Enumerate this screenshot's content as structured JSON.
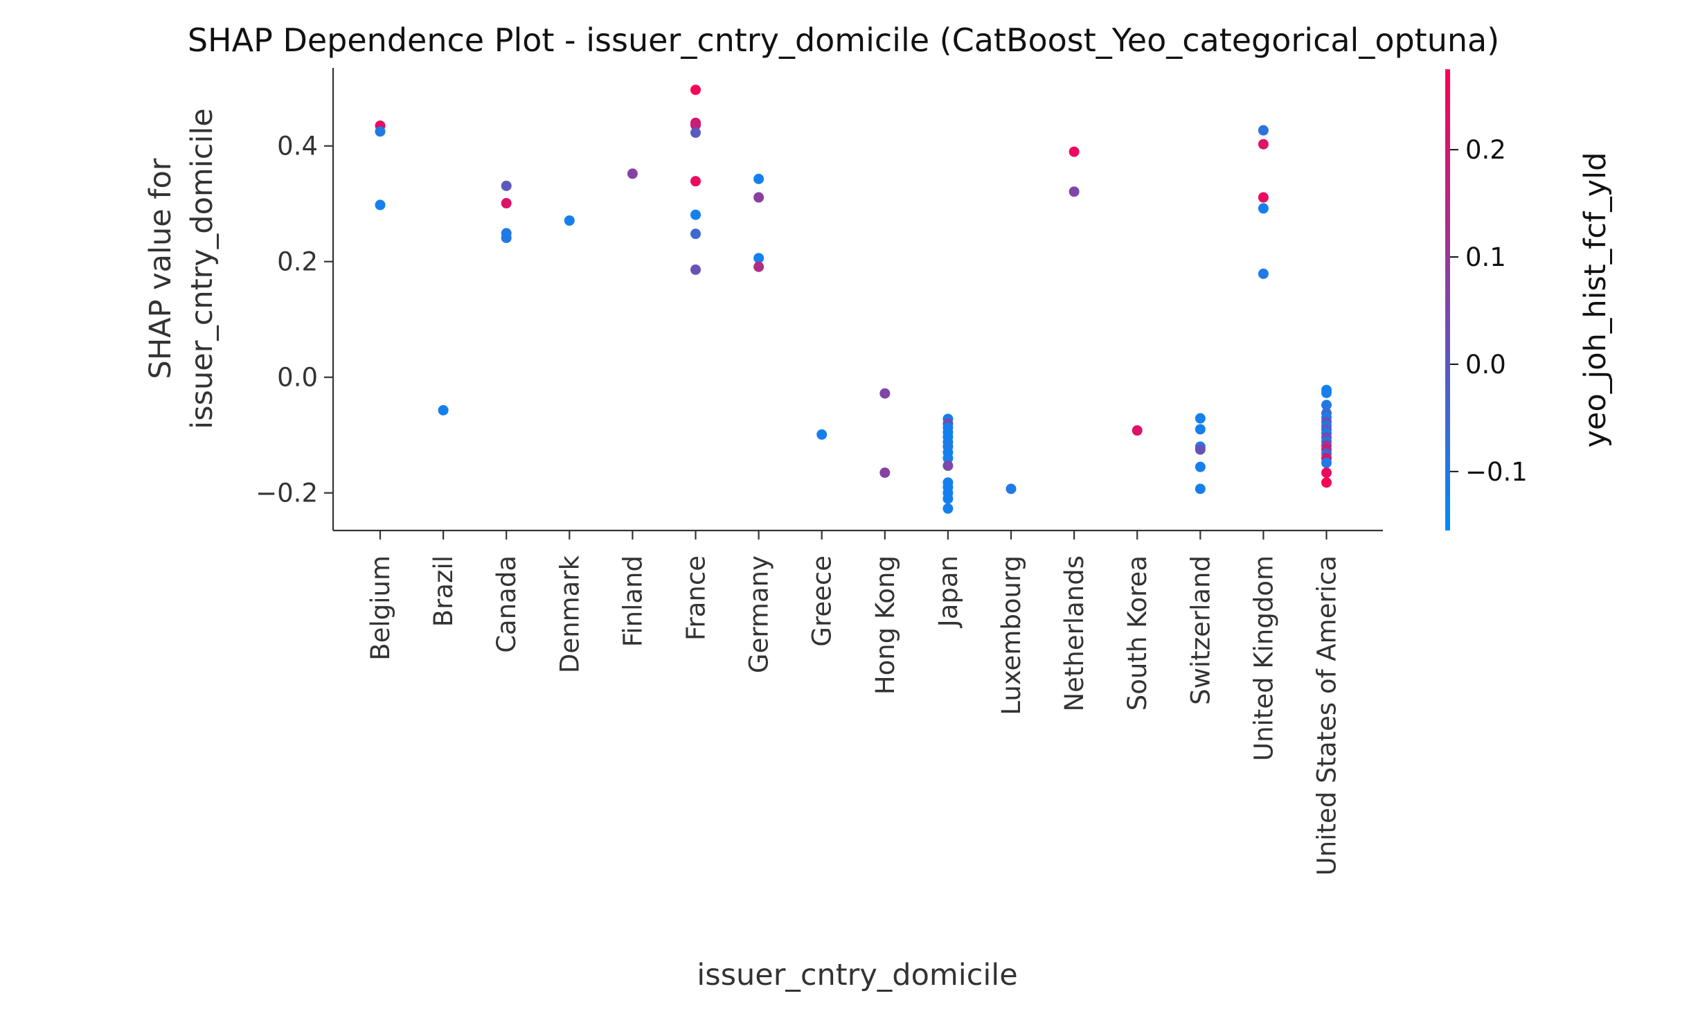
{
  "chart_data": {
    "type": "scatter",
    "title": "SHAP Dependence Plot - issuer_cntry_domicile (CatBoost_Yeo_categorical_optuna)",
    "xlabel": "issuer_cntry_domicile",
    "ylabel_lines": [
      "SHAP value for",
      "issuer_cntry_domicile"
    ],
    "categories": [
      "Belgium",
      "Brazil",
      "Canada",
      "Denmark",
      "Finland",
      "France",
      "Germany",
      "Greece",
      "Hong Kong",
      "Japan",
      "Luxembourg",
      "Netherlands",
      "South Korea",
      "Switzerland",
      "United Kingdom",
      "United States of America"
    ],
    "ylim": [
      -0.265,
      0.535
    ],
    "yticks": [
      -0.2,
      0.0,
      0.2,
      0.4
    ],
    "ytick_labels": [
      "−0.2",
      "0.0",
      "0.2",
      "0.4"
    ],
    "colorbar": {
      "label": "yeo_joh_hist_fcf_yld",
      "range": [
        -0.155,
        0.275
      ],
      "ticks": [
        -0.1,
        0.0,
        0.1,
        0.2
      ],
      "tick_labels": [
        "−0.1",
        "0.0",
        "0.1",
        "0.2"
      ],
      "color_low": "#008bfb",
      "color_high": "#ff0052"
    },
    "series": [
      {
        "points": [
          {
            "x": "Belgium",
            "y": 0.435,
            "c": 0.24
          },
          {
            "x": "Belgium",
            "y": 0.425,
            "c": -0.1
          },
          {
            "x": "Belgium",
            "y": 0.298,
            "c": -0.12
          },
          {
            "x": "Brazil",
            "y": -0.057,
            "c": -0.12
          },
          {
            "x": "Canada",
            "y": 0.331,
            "c": 0.0
          },
          {
            "x": "Canada",
            "y": 0.301,
            "c": 0.22
          },
          {
            "x": "Canada",
            "y": 0.249,
            "c": -0.1
          },
          {
            "x": "Canada",
            "y": 0.241,
            "c": -0.1
          },
          {
            "x": "Denmark",
            "y": 0.271,
            "c": -0.12
          },
          {
            "x": "Finland",
            "y": 0.352,
            "c": 0.07
          },
          {
            "x": "France",
            "y": 0.497,
            "c": 0.26
          },
          {
            "x": "France",
            "y": 0.44,
            "c": 0.22
          },
          {
            "x": "France",
            "y": 0.436,
            "c": 0.18
          },
          {
            "x": "France",
            "y": 0.423,
            "c": 0.0
          },
          {
            "x": "France",
            "y": 0.339,
            "c": 0.24
          },
          {
            "x": "France",
            "y": 0.281,
            "c": -0.12
          },
          {
            "x": "France",
            "y": 0.248,
            "c": -0.05
          },
          {
            "x": "France",
            "y": 0.186,
            "c": 0.02
          },
          {
            "x": "Germany",
            "y": 0.343,
            "c": -0.12
          },
          {
            "x": "Germany",
            "y": 0.311,
            "c": 0.08
          },
          {
            "x": "Germany",
            "y": 0.206,
            "c": -0.12
          },
          {
            "x": "Germany",
            "y": 0.191,
            "c": 0.14
          },
          {
            "x": "Greece",
            "y": -0.099,
            "c": -0.12
          },
          {
            "x": "Hong Kong",
            "y": -0.028,
            "c": 0.06
          },
          {
            "x": "Hong Kong",
            "y": -0.165,
            "c": 0.07
          },
          {
            "x": "Japan",
            "y": -0.072,
            "c": -0.12
          },
          {
            "x": "Japan",
            "y": -0.08,
            "c": 0.05
          },
          {
            "x": "Japan",
            "y": -0.087,
            "c": -0.12
          },
          {
            "x": "Japan",
            "y": -0.095,
            "c": -0.12
          },
          {
            "x": "Japan",
            "y": -0.103,
            "c": -0.12
          },
          {
            "x": "Japan",
            "y": -0.112,
            "c": -0.12
          },
          {
            "x": "Japan",
            "y": -0.12,
            "c": -0.1
          },
          {
            "x": "Japan",
            "y": -0.13,
            "c": -0.12
          },
          {
            "x": "Japan",
            "y": -0.14,
            "c": -0.12
          },
          {
            "x": "Japan",
            "y": -0.153,
            "c": 0.05
          },
          {
            "x": "Japan",
            "y": -0.182,
            "c": -0.12
          },
          {
            "x": "Japan",
            "y": -0.19,
            "c": -0.12
          },
          {
            "x": "Japan",
            "y": -0.2,
            "c": -0.12
          },
          {
            "x": "Japan",
            "y": -0.21,
            "c": -0.12
          },
          {
            "x": "Japan",
            "y": -0.227,
            "c": -0.12
          },
          {
            "x": "Luxembourg",
            "y": -0.193,
            "c": -0.1
          },
          {
            "x": "Netherlands",
            "y": 0.39,
            "c": 0.24
          },
          {
            "x": "Netherlands",
            "y": 0.321,
            "c": 0.06
          },
          {
            "x": "South Korea",
            "y": -0.092,
            "c": 0.22
          },
          {
            "x": "Switzerland",
            "y": -0.071,
            "c": -0.12
          },
          {
            "x": "Switzerland",
            "y": -0.09,
            "c": -0.12
          },
          {
            "x": "Switzerland",
            "y": -0.12,
            "c": -0.1
          },
          {
            "x": "Switzerland",
            "y": -0.125,
            "c": 0.02
          },
          {
            "x": "Switzerland",
            "y": -0.155,
            "c": -0.12
          },
          {
            "x": "Switzerland",
            "y": -0.193,
            "c": -0.12
          },
          {
            "x": "United Kingdom",
            "y": 0.427,
            "c": -0.08
          },
          {
            "x": "United Kingdom",
            "y": 0.403,
            "c": 0.22
          },
          {
            "x": "United Kingdom",
            "y": 0.311,
            "c": 0.24
          },
          {
            "x": "United Kingdom",
            "y": 0.292,
            "c": -0.12
          },
          {
            "x": "United Kingdom",
            "y": 0.179,
            "c": -0.1
          },
          {
            "x": "United States of America",
            "y": -0.022,
            "c": -0.12
          },
          {
            "x": "United States of America",
            "y": -0.027,
            "c": -0.12
          },
          {
            "x": "United States of America",
            "y": -0.048,
            "c": -0.1
          },
          {
            "x": "United States of America",
            "y": -0.062,
            "c": -0.05
          },
          {
            "x": "United States of America",
            "y": -0.07,
            "c": -0.12
          },
          {
            "x": "United States of America",
            "y": -0.077,
            "c": 0.02
          },
          {
            "x": "United States of America",
            "y": -0.084,
            "c": -0.1
          },
          {
            "x": "United States of America",
            "y": -0.09,
            "c": 0.0
          },
          {
            "x": "United States of America",
            "y": -0.097,
            "c": -0.12
          },
          {
            "x": "United States of America",
            "y": -0.104,
            "c": 0.05
          },
          {
            "x": "United States of America",
            "y": -0.111,
            "c": -0.08
          },
          {
            "x": "United States of America",
            "y": -0.118,
            "c": 0.1
          },
          {
            "x": "United States of America",
            "y": -0.125,
            "c": 0.18
          },
          {
            "x": "United States of America",
            "y": -0.132,
            "c": -0.05
          },
          {
            "x": "United States of America",
            "y": -0.14,
            "c": 0.2
          },
          {
            "x": "United States of America",
            "y": -0.148,
            "c": -0.1
          },
          {
            "x": "United States of America",
            "y": -0.165,
            "c": 0.24
          },
          {
            "x": "United States of America",
            "y": -0.182,
            "c": 0.26
          }
        ]
      }
    ]
  }
}
